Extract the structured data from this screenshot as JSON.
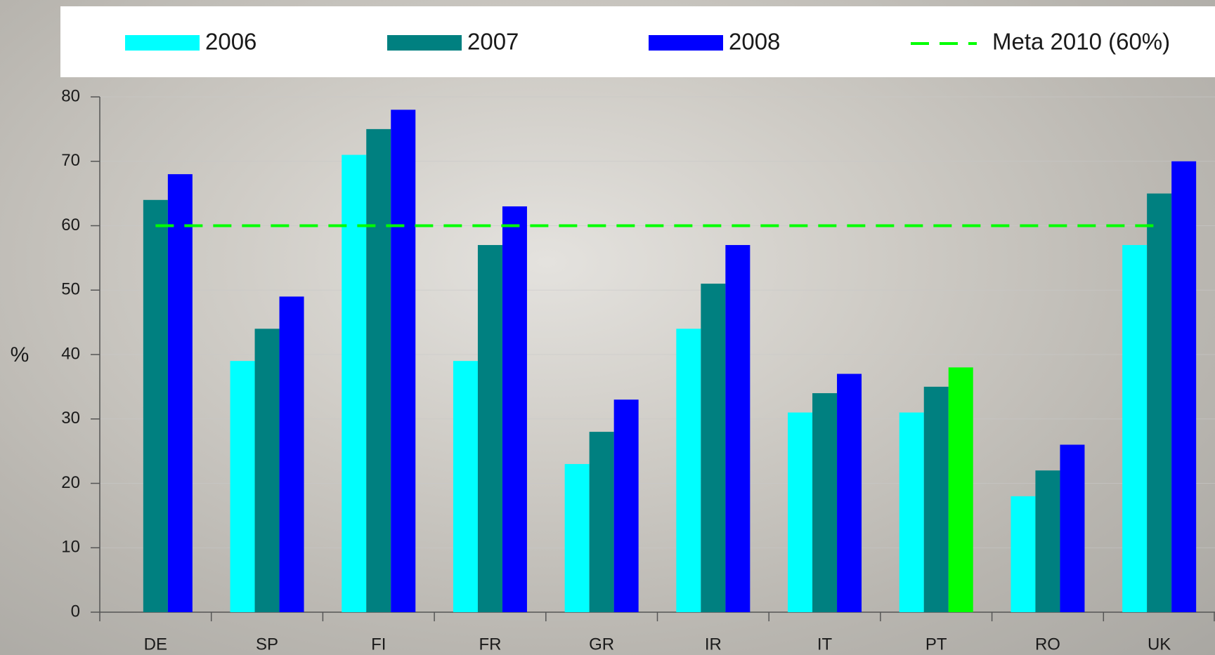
{
  "chart_data": {
    "type": "bar",
    "y_label": "%",
    "categories": [
      "DE",
      "SP",
      "FI",
      "FR",
      "GR",
      "IR",
      "IT",
      "PT",
      "RO",
      "UK"
    ],
    "series": [
      {
        "name": "2006",
        "color": "#00ffff",
        "values": [
          null,
          39,
          71,
          39,
          23,
          44,
          31,
          31,
          18,
          57
        ]
      },
      {
        "name": "2007",
        "color": "#008080",
        "values": [
          64,
          44,
          75,
          57,
          28,
          51,
          34,
          35,
          22,
          65
        ]
      },
      {
        "name": "2008",
        "color": "#0000ff",
        "values": [
          68,
          49,
          78,
          63,
          33,
          57,
          37,
          38,
          26,
          70
        ],
        "colors": [
          "#0000ff",
          "#0000ff",
          "#0000ff",
          "#0000ff",
          "#0000ff",
          "#0000ff",
          "#0000ff",
          "#00ff00",
          "#0000ff",
          "#0000ff"
        ]
      }
    ],
    "reference_line": {
      "name": "Meta 2010 (60%)",
      "value": 60,
      "color": "#00ff00",
      "style": "dashed"
    },
    "ylim": [
      0,
      80
    ],
    "yticks": [
      0,
      10,
      20,
      30,
      40,
      50,
      60,
      70,
      80
    ],
    "grid": true
  }
}
